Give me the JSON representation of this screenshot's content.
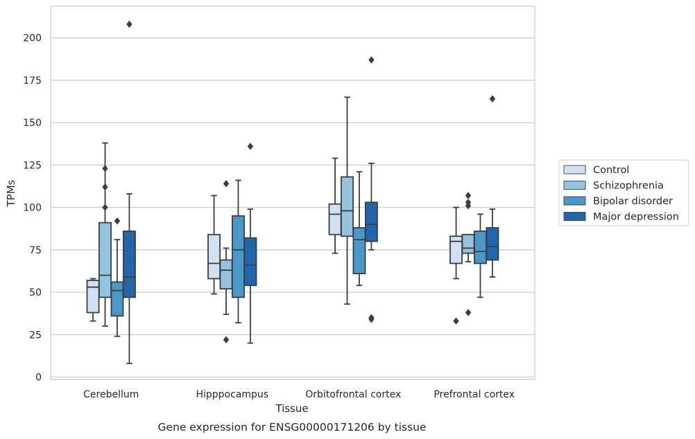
{
  "chart_data": {
    "type": "box",
    "title": "",
    "caption": "Gene expression for ENSG00000171206 by tissue",
    "xlabel": "Tissue",
    "ylabel": "TPMs",
    "ylim": [
      -1,
      220
    ],
    "yticks": [
      0,
      25,
      50,
      75,
      100,
      125,
      150,
      175,
      200
    ],
    "grid": "horizontal",
    "legend_position": "right",
    "categories": [
      "Cerebellum",
      "Hipppocampus",
      "Orbitofrontal cortex",
      "Prefrontal cortex"
    ],
    "series": [
      {
        "name": "Control",
        "color": "#d0e2f2",
        "boxes": [
          {
            "whisker_low": 33,
            "q1": 38,
            "median": 53,
            "q3": 57,
            "whisker_high": 58,
            "outliers": []
          },
          {
            "whisker_low": 49,
            "q1": 58,
            "median": 67,
            "q3": 84,
            "whisker_high": 107,
            "outliers": []
          },
          {
            "whisker_low": 73,
            "q1": 84,
            "median": 96,
            "q3": 102,
            "whisker_high": 129,
            "outliers": []
          },
          {
            "whisker_low": 58,
            "q1": 67,
            "median": 80,
            "q3": 83,
            "whisker_high": 100,
            "outliers": [
              33
            ]
          }
        ]
      },
      {
        "name": "Schizophrenia",
        "color": "#94c4df",
        "boxes": [
          {
            "whisker_low": 30,
            "q1": 47,
            "median": 60,
            "q3": 91,
            "whisker_high": 138,
            "outliers": [
              100,
              112,
              123
            ]
          },
          {
            "whisker_low": 37,
            "q1": 52,
            "median": 63,
            "q3": 69,
            "whisker_high": 76,
            "outliers": [
              114,
              22
            ]
          },
          {
            "whisker_low": 43,
            "q1": 83,
            "median": 98,
            "q3": 118,
            "whisker_high": 165,
            "outliers": []
          },
          {
            "whisker_low": 68,
            "q1": 73,
            "median": 76,
            "q3": 84,
            "whisker_high": 84,
            "outliers": [
              38,
              101,
              103,
              107
            ]
          }
        ]
      },
      {
        "name": "Bipolar disorder",
        "color": "#4a98c9",
        "boxes": [
          {
            "whisker_low": 24,
            "q1": 36,
            "median": 51,
            "q3": 56,
            "whisker_high": 81,
            "outliers": [
              92
            ]
          },
          {
            "whisker_low": 32,
            "q1": 47,
            "median": 75,
            "q3": 95,
            "whisker_high": 116,
            "outliers": []
          },
          {
            "whisker_low": 54,
            "q1": 61,
            "median": 81,
            "q3": 88,
            "whisker_high": 121,
            "outliers": []
          },
          {
            "whisker_low": 47,
            "q1": 67,
            "median": 74,
            "q3": 86,
            "whisker_high": 96,
            "outliers": []
          }
        ]
      },
      {
        "name": "Major depression",
        "color": "#2166ac",
        "boxes": [
          {
            "whisker_low": 8,
            "q1": 47,
            "median": 59,
            "q3": 86,
            "whisker_high": 108,
            "outliers": [
              208
            ]
          },
          {
            "whisker_low": 20,
            "q1": 54,
            "median": 66,
            "q3": 82,
            "whisker_high": 99,
            "outliers": [
              136
            ]
          },
          {
            "whisker_low": 75,
            "q1": 80,
            "median": 90,
            "q3": 103,
            "whisker_high": 126,
            "outliers": [
              34,
              35,
              187
            ]
          },
          {
            "whisker_low": 59,
            "q1": 69,
            "median": 77,
            "q3": 88,
            "whisker_high": 99,
            "outliers": [
              164
            ]
          }
        ]
      }
    ]
  }
}
